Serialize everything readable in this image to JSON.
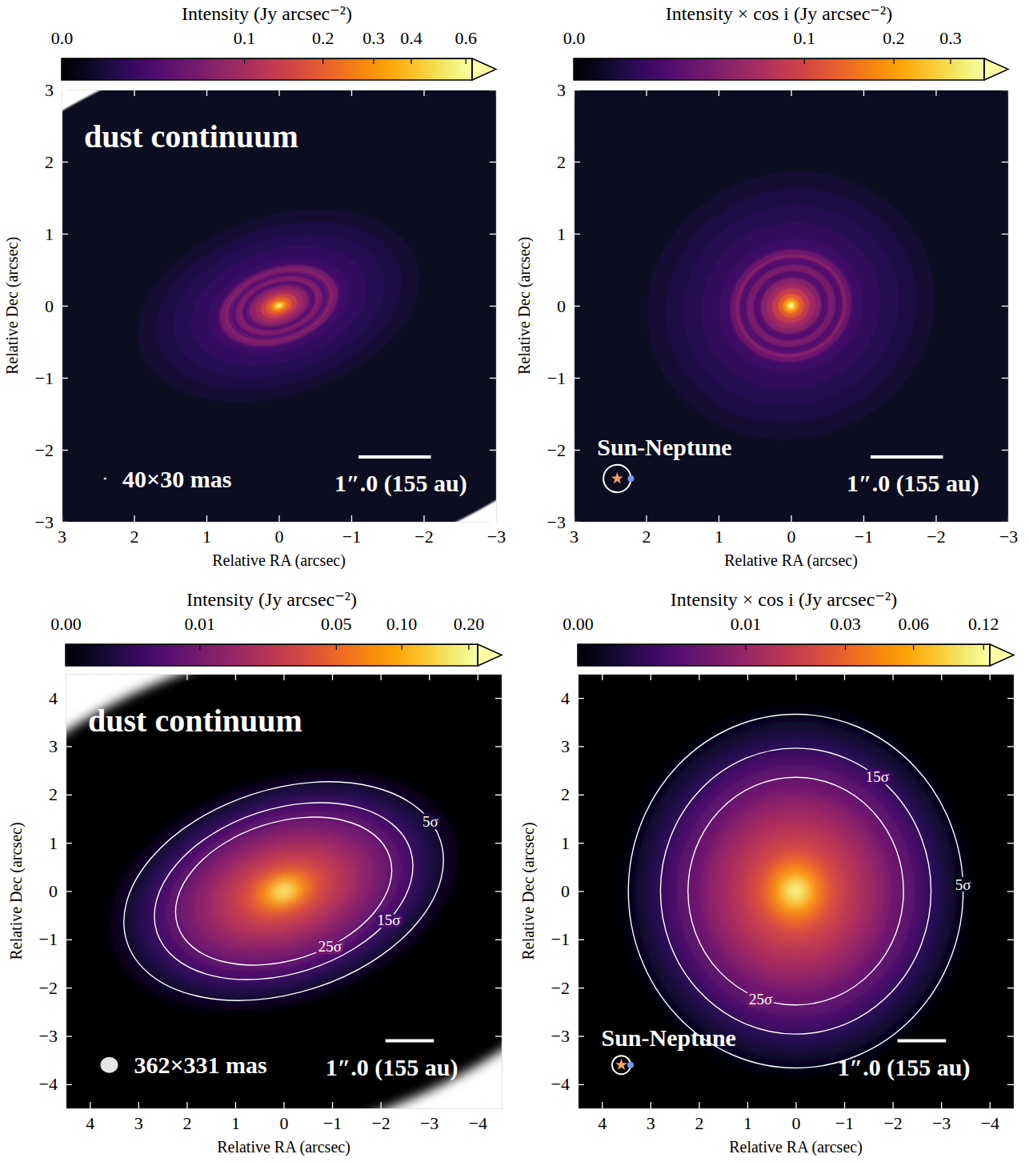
{
  "chart_data": [
    {
      "type": "image",
      "title": "dust continuum",
      "color": "inferno",
      "xlabel": "Relative RA (arcsec)",
      "ylabel": "Relative Dec (arcsec)",
      "xlim": [
        3,
        -3
      ],
      "ylim": [
        -3,
        3
      ],
      "xticks": [
        3,
        2,
        1,
        0,
        {
          "value": -1,
          "label": "−1"
        },
        {
          "value": -2,
          "label": "−2"
        },
        {
          "value": -3,
          "label": "−3"
        }
      ],
      "yticks": [
        {
          "value": -3,
          "label": "−3"
        },
        {
          "value": -2,
          "label": "−2"
        },
        {
          "value": -1,
          "label": "−1"
        },
        0,
        1,
        2,
        3
      ],
      "colorbar": {
        "label": "Intensity (Jy arcsec⁻²)",
        "range": [
          0,
          0.63
        ],
        "ticks": [
          {
            "value": 0,
            "label": "0.0"
          },
          0.1,
          0.2,
          0.3,
          0.4,
          0.6
        ]
      },
      "image": {
        "position_angle": 108,
        "axis_ratio": 0.62,
        "rings": [
          {
            "a": 6,
            "value": 0.008
          },
          {
            "a": 2.0,
            "value": 0.012
          },
          {
            "a": 1.75,
            "value": 0.016
          },
          {
            "a": 1.5,
            "value": 0.02
          },
          {
            "a": 1.25,
            "value": 0.024
          },
          {
            "a": 1.0,
            "value": 0.028
          },
          {
            "a": 0.88,
            "value": 0.035
          },
          {
            "a": 0.84,
            "value": 0.06
          },
          {
            "a": 0.77,
            "value": 0.075
          },
          {
            "a": 0.72,
            "value": 0.045
          },
          {
            "a": 0.66,
            "value": 0.04
          },
          {
            "a": 0.62,
            "value": 0.065
          },
          {
            "a": 0.57,
            "value": 0.07
          },
          {
            "a": 0.52,
            "value": 0.042
          },
          {
            "a": 0.47,
            "value": 0.045
          },
          {
            "a": 0.42,
            "value": 0.075
          },
          {
            "a": 0.34,
            "value": 0.1
          },
          {
            "a": 0.26,
            "value": 0.14
          },
          {
            "a": 0.18,
            "value": 0.2
          },
          {
            "a": 0.11,
            "value": 0.3
          },
          {
            "a": 0.06,
            "value": 0.45
          },
          {
            "a": 0.03,
            "value": 0.6
          }
        ]
      },
      "beam": {
        "label": "40×30 mas",
        "major": 0.04,
        "minor": 0.03,
        "x": 2.4,
        "y": -2.4
      },
      "scale_bar": {
        "label": "1″.0 (155 au)",
        "length": 1.0,
        "x": -1.1,
        "y": -2.1
      }
    },
    {
      "type": "image",
      "color": "inferno",
      "xlabel": "Relative RA (arcsec)",
      "ylabel": "Relative Dec (arcsec)",
      "xlim": [
        3,
        -3
      ],
      "ylim": [
        -3,
        3
      ],
      "xticks": [
        3,
        2,
        1,
        0,
        {
          "value": -1,
          "label": "−1"
        },
        {
          "value": -2,
          "label": "−2"
        },
        {
          "value": -3,
          "label": "−3"
        }
      ],
      "yticks": [
        {
          "value": -3,
          "label": "−3"
        },
        {
          "value": -2,
          "label": "−2"
        },
        {
          "value": -1,
          "label": "−1"
        },
        0,
        1,
        2,
        3
      ],
      "colorbar": {
        "label": "Intensity × cos i (Jy arcsec⁻²)",
        "range": [
          0,
          0.38
        ],
        "ticks": [
          {
            "value": 0,
            "label": "0.0"
          },
          0.1,
          0.2,
          0.3
        ]
      },
      "image": {
        "position_angle": 108,
        "axis_ratio": 0.92,
        "rings": [
          {
            "a": 6,
            "value": 0.005
          },
          {
            "a": 2.0,
            "value": 0.008
          },
          {
            "a": 1.75,
            "value": 0.011
          },
          {
            "a": 1.5,
            "value": 0.013
          },
          {
            "a": 1.25,
            "value": 0.016
          },
          {
            "a": 1.0,
            "value": 0.019
          },
          {
            "a": 0.88,
            "value": 0.022
          },
          {
            "a": 0.84,
            "value": 0.037
          },
          {
            "a": 0.77,
            "value": 0.047
          },
          {
            "a": 0.72,
            "value": 0.028
          },
          {
            "a": 0.66,
            "value": 0.025
          },
          {
            "a": 0.62,
            "value": 0.04
          },
          {
            "a": 0.57,
            "value": 0.043
          },
          {
            "a": 0.52,
            "value": 0.026
          },
          {
            "a": 0.47,
            "value": 0.028
          },
          {
            "a": 0.42,
            "value": 0.047
          },
          {
            "a": 0.34,
            "value": 0.062
          },
          {
            "a": 0.26,
            "value": 0.087
          },
          {
            "a": 0.18,
            "value": 0.125
          },
          {
            "a": 0.11,
            "value": 0.19
          },
          {
            "a": 0.06,
            "value": 0.28
          },
          {
            "a": 0.03,
            "value": 0.37
          }
        ]
      },
      "reference": {
        "label": "Sun-Neptune",
        "radius": 0.19,
        "x": 2.4,
        "y": -2.4
      },
      "scale_bar": {
        "label": "1″.0 (155 au)",
        "length": 1.0,
        "x": -1.1,
        "y": -2.1
      }
    },
    {
      "type": "image",
      "title": "dust continuum",
      "color": "inferno",
      "xlabel": "Relative RA (arcsec)",
      "ylabel": "Relative Dec (arcsec)",
      "xlim": [
        4.5,
        -4.5
      ],
      "ylim": [
        -4.5,
        4.5
      ],
      "xticks": [
        4,
        3,
        2,
        1,
        0,
        {
          "value": -1,
          "label": "−1"
        },
        {
          "value": -2,
          "label": "−2"
        },
        {
          "value": -3,
          "label": "−3"
        },
        {
          "value": -4,
          "label": "−4"
        }
      ],
      "yticks": [
        {
          "value": -4,
          "label": "−4"
        },
        {
          "value": -3,
          "label": "−3"
        },
        {
          "value": -2,
          "label": "−2"
        },
        {
          "value": -1,
          "label": "−1"
        },
        0,
        1,
        2,
        3,
        4
      ],
      "colorbar": {
        "label": "Intensity (Jy arcsec⁻²)",
        "range": [
          0,
          0.22
        ],
        "ticks": [
          {
            "value": 0,
            "label": "0.00"
          },
          0.01,
          0.05,
          {
            "value": 0.1,
            "label": "0.10"
          },
          {
            "value": 0.2,
            "label": "0.20"
          }
        ]
      },
      "image": {
        "position_angle": 108,
        "axis_ratio": 0.62,
        "rings": [
          {
            "a": 8,
            "value": 0
          },
          {
            "a": 3.7,
            "value": 0.0008
          },
          {
            "a": 3.4,
            "value": 0.0018
          },
          {
            "a": 3.1,
            "value": 0.003
          },
          {
            "a": 2.8,
            "value": 0.005
          },
          {
            "a": 2.5,
            "value": 0.0075
          },
          {
            "a": 2.2,
            "value": 0.01
          },
          {
            "a": 1.9,
            "value": 0.014
          },
          {
            "a": 1.6,
            "value": 0.019
          },
          {
            "a": 1.3,
            "value": 0.025
          },
          {
            "a": 1.0,
            "value": 0.033
          },
          {
            "a": 0.75,
            "value": 0.045
          },
          {
            "a": 0.55,
            "value": 0.065
          },
          {
            "a": 0.4,
            "value": 0.09
          },
          {
            "a": 0.27,
            "value": 0.13
          },
          {
            "a": 0.16,
            "value": 0.18
          },
          {
            "a": 0.08,
            "value": 0.22
          }
        ]
      },
      "contours": [
        {
          "label": "5σ",
          "a": 3.4
        },
        {
          "label": "15σ",
          "a": 2.75
        },
        {
          "label": "25σ",
          "a": 2.3
        }
      ],
      "beam": {
        "label": "362×331 mas",
        "major": 0.362,
        "minor": 0.331,
        "x": 3.6,
        "y": -3.6
      },
      "scale_bar": {
        "label": "1″.0 (155 au)",
        "length": 1.0,
        "x": -2.1,
        "y": -3.1
      }
    },
    {
      "type": "image",
      "color": "inferno",
      "xlabel": "Relative RA (arcsec)",
      "ylabel": "Relative Dec (arcsec)",
      "xlim": [
        4.5,
        -4.5
      ],
      "ylim": [
        -4.5,
        4.5
      ],
      "xticks": [
        4,
        3,
        2,
        1,
        0,
        {
          "value": -1,
          "label": "−1"
        },
        {
          "value": -2,
          "label": "−2"
        },
        {
          "value": -3,
          "label": "−3"
        },
        {
          "value": -4,
          "label": "−4"
        }
      ],
      "yticks": [
        {
          "value": -4,
          "label": "−4"
        },
        {
          "value": -3,
          "label": "−3"
        },
        {
          "value": -2,
          "label": "−2"
        },
        {
          "value": -1,
          "label": "−1"
        },
        0,
        1,
        2,
        3,
        4
      ],
      "colorbar": {
        "label": "Intensity × cos i (Jy arcsec⁻²)",
        "range": [
          0,
          0.128
        ],
        "ticks": [
          {
            "value": 0,
            "label": "0.00"
          },
          0.01,
          0.03,
          0.06,
          0.12
        ]
      },
      "image": {
        "position_angle": 0,
        "axis_ratio": 0.95,
        "rings": [
          {
            "a": 8,
            "value": 0
          },
          {
            "a": 3.8,
            "value": 0.0005
          },
          {
            "a": 3.5,
            "value": 0.0011
          },
          {
            "a": 3.2,
            "value": 0.0019
          },
          {
            "a": 2.9,
            "value": 0.0031
          },
          {
            "a": 2.6,
            "value": 0.0047
          },
          {
            "a": 2.3,
            "value": 0.0062
          },
          {
            "a": 2.0,
            "value": 0.0087
          },
          {
            "a": 1.7,
            "value": 0.012
          },
          {
            "a": 1.4,
            "value": 0.0155
          },
          {
            "a": 1.1,
            "value": 0.02
          },
          {
            "a": 0.8,
            "value": 0.028
          },
          {
            "a": 0.6,
            "value": 0.04
          },
          {
            "a": 0.42,
            "value": 0.056
          },
          {
            "a": 0.28,
            "value": 0.08
          },
          {
            "a": 0.17,
            "value": 0.11
          },
          {
            "a": 0.09,
            "value": 0.128
          }
        ]
      },
      "contours": [
        {
          "label": "5σ",
          "a": 3.65
        },
        {
          "label": "15σ",
          "a": 2.95
        },
        {
          "label": "25σ",
          "a": 2.35
        }
      ],
      "reference": {
        "label": "Sun-Neptune",
        "radius": 0.19,
        "x": 3.6,
        "y": -3.6
      },
      "scale_bar": {
        "label": "1″.0 (155 au)",
        "length": 1.0,
        "x": -2.1,
        "y": -3.1
      }
    }
  ]
}
